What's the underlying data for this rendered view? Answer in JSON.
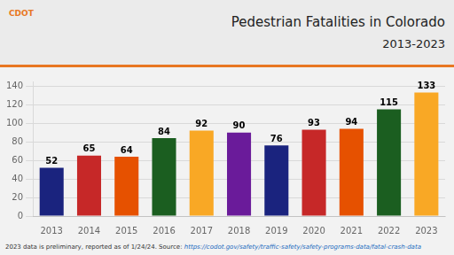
{
  "chart_data": {
    "type": "bar",
    "title": "Pedestrian Fatalities in Colorado",
    "subtitle": "2013-2023",
    "categories": [
      "2013",
      "2014",
      "2015",
      "2016",
      "2017",
      "2018",
      "2019",
      "2020",
      "2021",
      "2022",
      "2023"
    ],
    "values": [
      52,
      65,
      64,
      84,
      92,
      90,
      76,
      93,
      94,
      115,
      133
    ],
    "colors": [
      "#1a237e",
      "#c62828",
      "#e65100",
      "#1b5e20",
      "#f9a825",
      "#6a1b9a",
      "#1a237e",
      "#c62828",
      "#e65100",
      "#1b5e20",
      "#f9a825"
    ],
    "ylim": [
      0,
      145
    ],
    "yticks": [
      0,
      20,
      40,
      60,
      80,
      100,
      120,
      140
    ],
    "grid": true,
    "data_labels": true,
    "annotations": [
      "CDOT",
      "2023 data is preliminary, reported as of 1/24/24. Source: ",
      "https://codot.gov/safety/traffic-safety/safety-programs-data/fatal-crash-data"
    ]
  }
}
